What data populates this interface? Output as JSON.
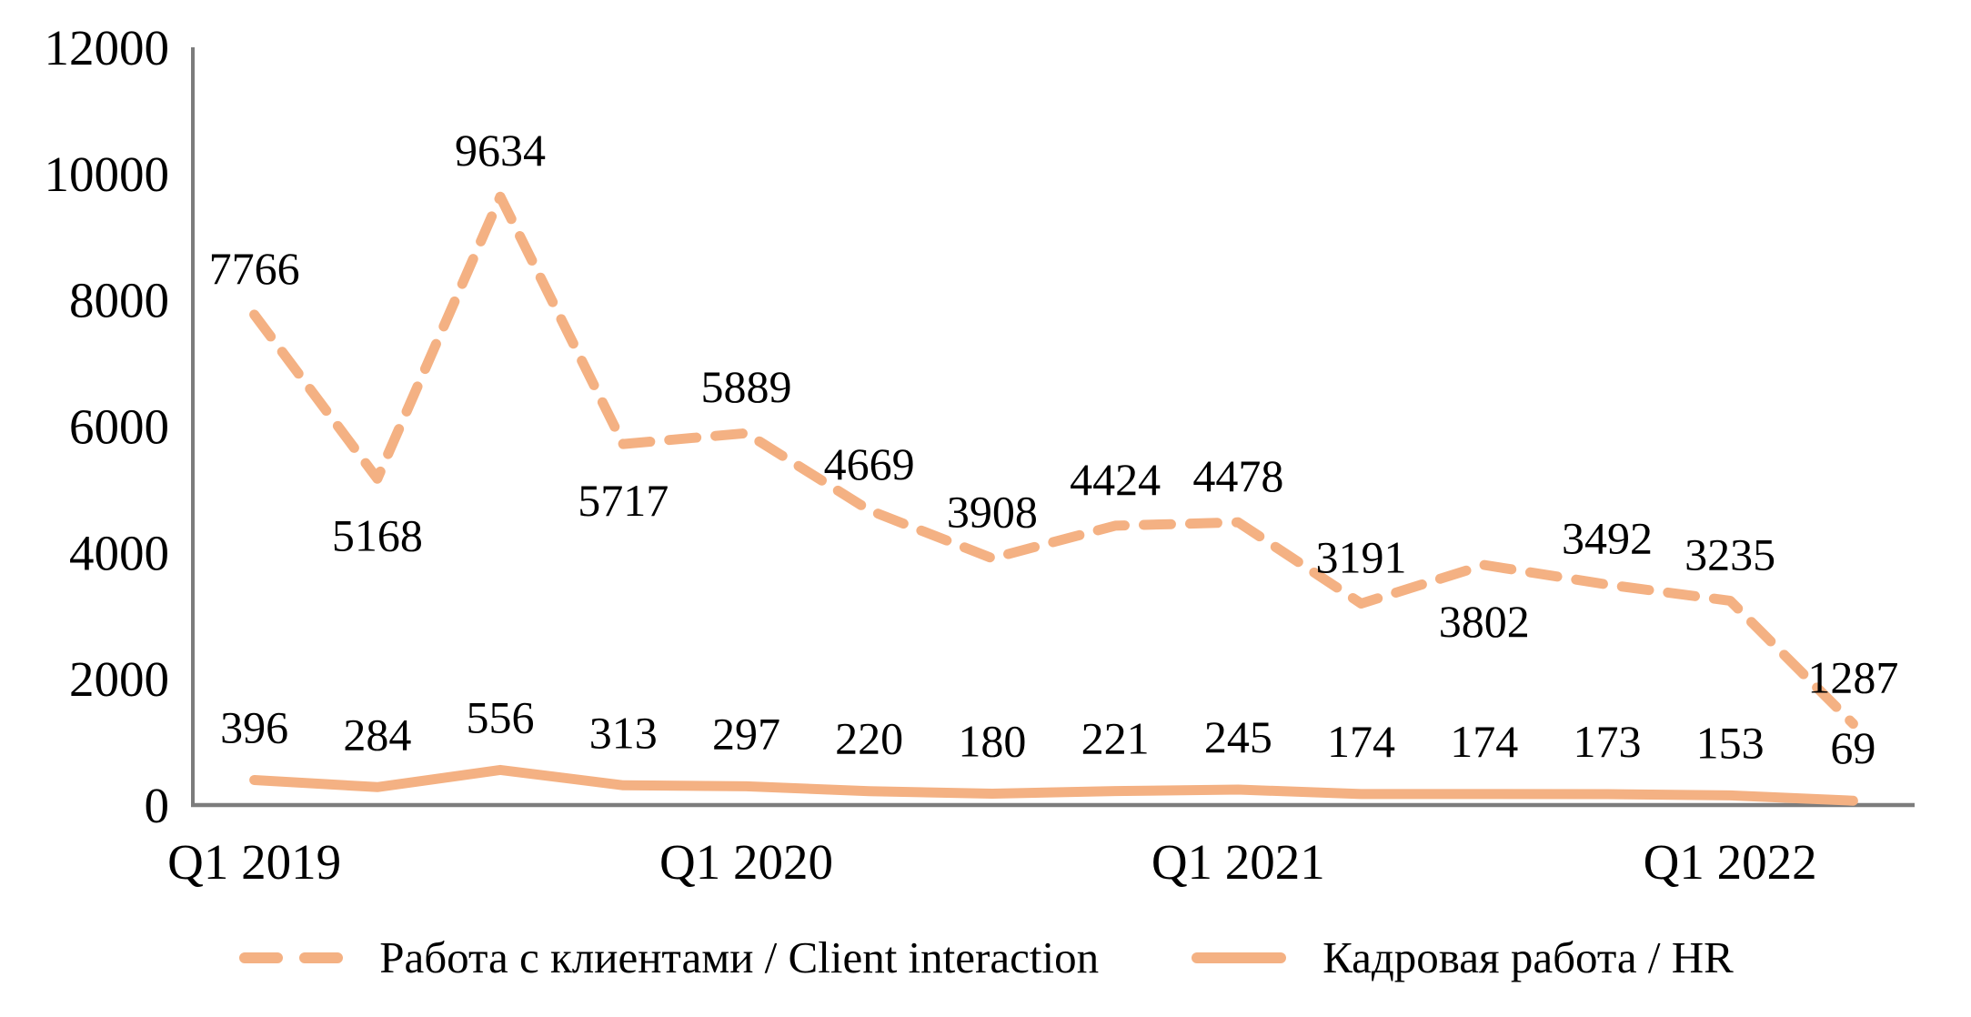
{
  "chart_data": {
    "type": "line",
    "x_ticks": [
      {
        "index": 0,
        "label": "Q1 2019"
      },
      {
        "index": 4,
        "label": "Q1 2020"
      },
      {
        "index": 8,
        "label": "Q1 2021"
      },
      {
        "index": 12,
        "label": "Q1 2022"
      }
    ],
    "y_axis": {
      "min": 0,
      "max": 12000,
      "step": 2000,
      "ticks": [
        0,
        2000,
        4000,
        6000,
        8000,
        10000,
        12000
      ]
    },
    "n_points": 14,
    "grid": "off",
    "legend_position": "bottom",
    "series": [
      {
        "name": "Работа с клиентами / Client interaction",
        "style": "dashed",
        "values": [
          7766,
          5168,
          9634,
          5717,
          5889,
          4669,
          3908,
          4424,
          4478,
          3191,
          3802,
          3492,
          3235,
          1287
        ],
        "label_positions": [
          "above",
          "below",
          "above",
          "below",
          "above",
          "above",
          "above",
          "above",
          "above",
          "above",
          "below",
          "above",
          "above",
          "above"
        ]
      },
      {
        "name": "Кадровая работа / HR",
        "style": "solid",
        "values": [
          396,
          284,
          556,
          313,
          297,
          220,
          180,
          221,
          245,
          174,
          174,
          173,
          153,
          69
        ],
        "label_positions": [
          "above",
          "above",
          "above",
          "above",
          "above",
          "above",
          "above",
          "above",
          "above",
          "above",
          "above",
          "above",
          "above",
          "above"
        ]
      }
    ],
    "legend": [
      {
        "label": "Работа с клиентами / Client interaction",
        "style": "dashed"
      },
      {
        "label": "Кадровая работа / HR",
        "style": "solid"
      }
    ],
    "colors": {
      "line": "#F4B183",
      "axis": "#7C7C7C",
      "text": "#000000"
    }
  }
}
